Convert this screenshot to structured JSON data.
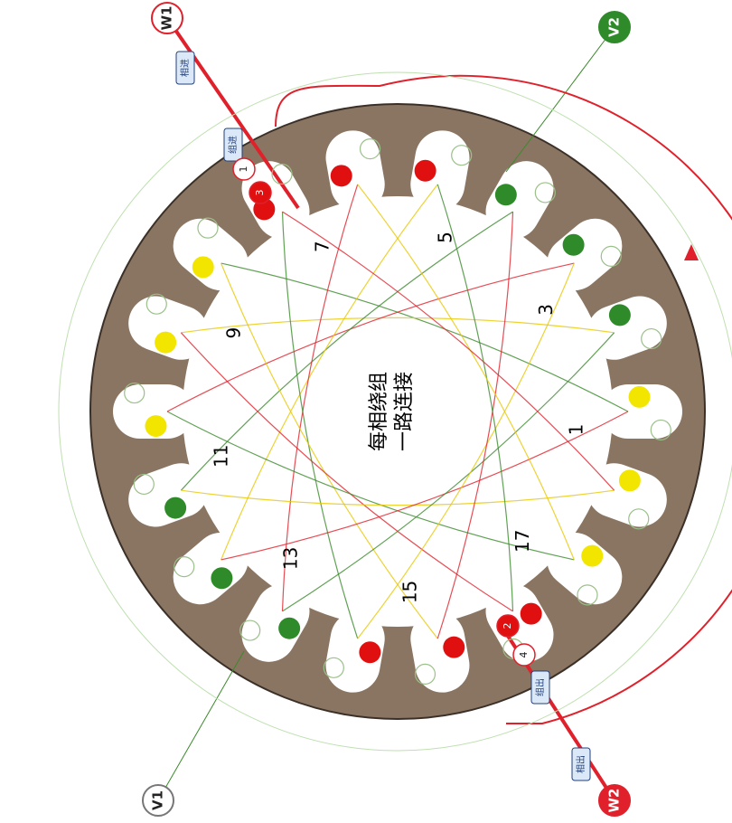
{
  "center_text": {
    "line1": "每相绕组",
    "line2": "一路连接"
  },
  "terminals": {
    "w1": "W1",
    "v2": "V2",
    "v1": "V1",
    "w2": "W2"
  },
  "tags": {
    "phase_in": "相进",
    "group_in": "组进",
    "group_out": "组出",
    "phase_out": "相出"
  },
  "coil_marks": [
    "1",
    "3",
    "2",
    "4"
  ],
  "slot_numbers": [
    "1",
    "3",
    "5",
    "7",
    "9",
    "11",
    "13",
    "15",
    "17"
  ]
}
